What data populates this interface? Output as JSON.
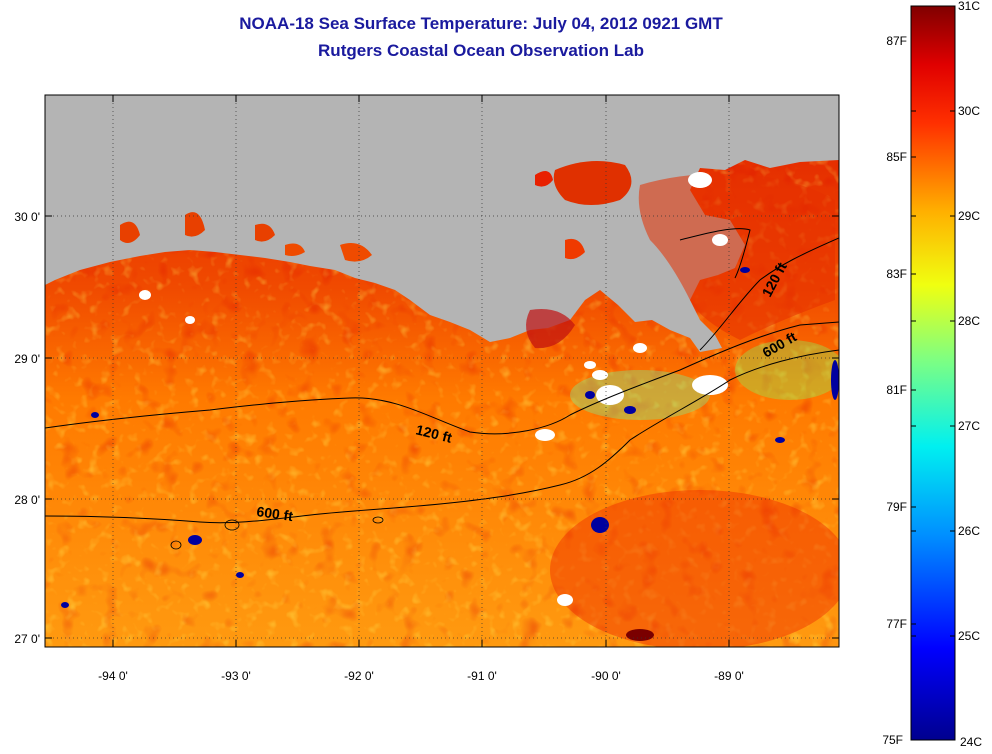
{
  "title": "NOAA-18 Sea Surface Temperature:  July 04, 2012 0921 GMT",
  "subtitle": "Rutgers Coastal Ocean Observation Lab",
  "map": {
    "x_ticks": [
      "-94 0'",
      "-93 0'",
      "-92 0'",
      "-91 0'",
      "-90 0'",
      "-89 0'"
    ],
    "y_ticks": [
      "30 0'",
      "29 0'",
      "28 0'",
      "27 0'"
    ],
    "x_range": [
      -94.5,
      -88.3
    ],
    "y_range": [
      26.95,
      30.85
    ],
    "grid": "dotted",
    "land_color": "#b4b4b4",
    "contours": [
      {
        "label": "120 ft"
      },
      {
        "label": "120 ft"
      },
      {
        "label": "600 ft"
      },
      {
        "label": "600 ft"
      }
    ]
  },
  "colorbar": {
    "celsius": [
      "31C",
      "30C",
      "29C",
      "28C",
      "27C",
      "26C",
      "25C",
      "24C"
    ],
    "fahrenheit": [
      "87F",
      "85F",
      "83F",
      "81F",
      "79F",
      "77F",
      "75F"
    ],
    "range_c": [
      24,
      31
    ]
  }
}
